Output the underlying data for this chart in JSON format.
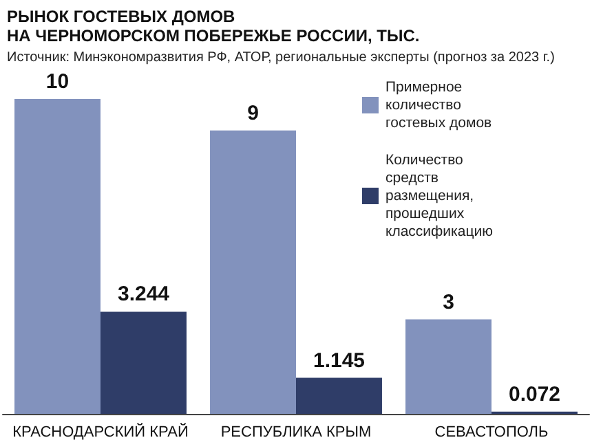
{
  "chart_data": {
    "type": "bar",
    "title": "РЫНОК ГОСТЕВЫХ ДОМОВ\nНА ЧЕРНОМОРСКОМ ПОБЕРЕЖЬЕ РОССИИ, ТЫС.",
    "subtitle": "Источник: Минэкономразвития РФ, АТОР, региональные эксперты (прогноз за 2023 г.)",
    "categories": [
      "КРАСНОДАРСКИЙ КРАЙ",
      "РЕСПУБЛИКА КРЫМ",
      "СЕВАСТОПОЛЬ"
    ],
    "series": [
      {
        "name": "Примерное количество гостевых домов",
        "color": "#8292bd",
        "values": [
          10,
          9,
          3
        ]
      },
      {
        "name": "Количество средств размещения, прошедших классификацию",
        "color": "#2f3d68",
        "values": [
          3.244,
          1.145,
          0.072
        ]
      }
    ],
    "data_labels": true,
    "legend": "top right",
    "grid": false
  }
}
